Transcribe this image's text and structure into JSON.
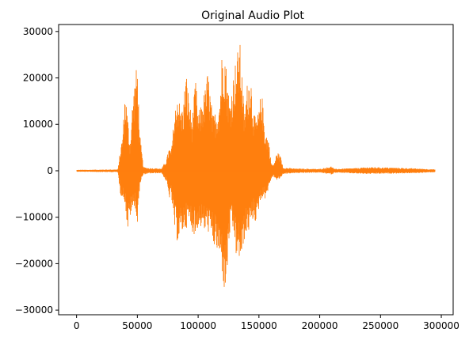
{
  "chart_data": {
    "type": "line",
    "title": "Original Audio Plot",
    "xlabel": "",
    "ylabel": "",
    "xlim": [
      -14750,
      309750
    ],
    "ylim": [
      -31000,
      31500
    ],
    "x_ticks": [
      0,
      50000,
      100000,
      150000,
      200000,
      250000,
      300000
    ],
    "x_tick_labels": [
      "0",
      "50000",
      "100000",
      "150000",
      "200000",
      "250000",
      "300000"
    ],
    "y_ticks": [
      -30000,
      -20000,
      -10000,
      0,
      10000,
      20000,
      30000
    ],
    "y_tick_labels": [
      "−30000",
      "−20000",
      "−10000",
      "0",
      "10000",
      "20000",
      "30000"
    ],
    "grid": false,
    "series": [
      {
        "color": "#ff7f0e",
        "x_start": 0,
        "x_end": 295000,
        "envelope": {
          "x": [
            0,
            34000,
            36000,
            38000,
            40000,
            42000,
            44000,
            46000,
            48000,
            50000,
            52000,
            55000,
            60000,
            70000,
            74000,
            76000,
            78000,
            80000,
            83000,
            86000,
            88000,
            90000,
            92000,
            95000,
            98000,
            100000,
            103000,
            106000,
            108000,
            112000,
            116000,
            118000,
            120000,
            122000,
            124000,
            126000,
            128000,
            130000,
            132000,
            134000,
            136000,
            138000,
            140000,
            143000,
            146000,
            148000,
            150000,
            152000,
            155000,
            158000,
            160000,
            162000,
            165000,
            168000,
            170000,
            180000,
            200000,
            210000,
            212000,
            230000,
            240000,
            260000,
            280000,
            295000
          ],
          "upper": [
            200,
            300,
            4500,
            8000,
            18000,
            12000,
            6000,
            15000,
            20000,
            23500,
            8000,
            800,
            600,
            500,
            2500,
            5000,
            4500,
            11000,
            17500,
            13000,
            15000,
            22000,
            17000,
            11000,
            20000,
            12000,
            15000,
            18000,
            22000,
            12000,
            13500,
            17000,
            28000,
            26500,
            20000,
            15000,
            19000,
            23000,
            25000,
            29000,
            22000,
            12000,
            18500,
            22000,
            12000,
            11500,
            13000,
            18000,
            9000,
            7000,
            1800,
            1200,
            4200,
            3000,
            700,
            500,
            400,
            1000,
            400,
            600,
            800,
            700,
            500,
            300
          ],
          "lower": [
            -200,
            -300,
            -5000,
            -6000,
            -7000,
            -13500,
            -10000,
            -9000,
            -7000,
            -13000,
            -3000,
            -800,
            -600,
            -500,
            -2500,
            -6000,
            -5500,
            -12000,
            -15500,
            -14000,
            -13000,
            -12500,
            -11500,
            -13000,
            -14500,
            -12000,
            -12500,
            -13500,
            -13000,
            -16000,
            -18000,
            -20000,
            -22500,
            -28000,
            -22000,
            -14000,
            -13000,
            -15000,
            -21000,
            -19000,
            -20000,
            -15000,
            -14000,
            -12500,
            -10000,
            -12000,
            -8000,
            -6000,
            -6000,
            -4000,
            -1800,
            -1200,
            -2200,
            -1500,
            -700,
            -500,
            -400,
            -800,
            -400,
            -600,
            -700,
            -600,
            -500,
            -300
          ]
        }
      }
    ]
  }
}
